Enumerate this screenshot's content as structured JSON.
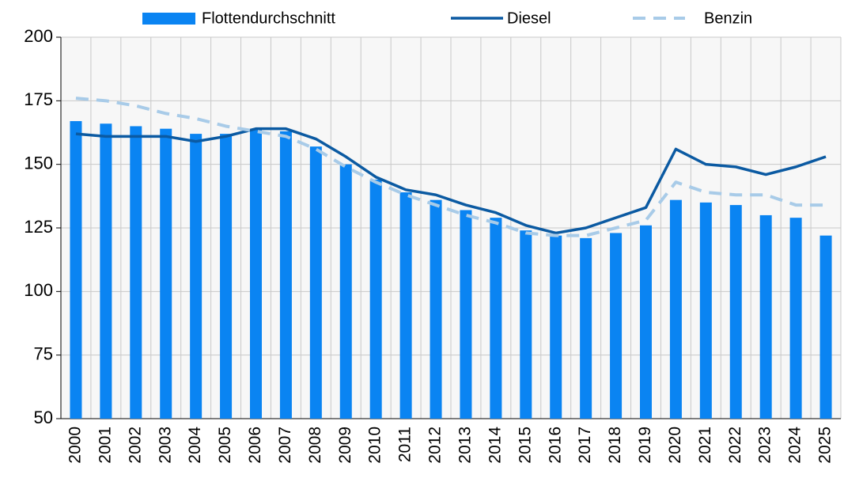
{
  "chart_data": {
    "type": "bar_line",
    "categories": [
      "2000",
      "2001",
      "2002",
      "2003",
      "2004",
      "2005",
      "2006",
      "2007",
      "2008",
      "2009",
      "2010",
      "2011",
      "2012",
      "2013",
      "2014",
      "2015",
      "2016",
      "2017",
      "2018",
      "2019",
      "2020",
      "2021",
      "2022",
      "2023",
      "2024",
      "2025"
    ],
    "series": [
      {
        "name": "Flottendurchschnitt",
        "type": "bar",
        "color": "#0a84f2",
        "values": [
          167,
          166,
          165,
          164,
          162,
          162,
          164,
          163,
          157,
          150,
          144,
          139,
          136,
          132,
          129,
          124,
          122,
          121,
          123,
          126,
          136,
          135,
          134,
          130,
          129,
          122
        ]
      },
      {
        "name": "Diesel",
        "type": "line",
        "color": "#0b5aa2",
        "dashed": false,
        "values": [
          162,
          161,
          161,
          161,
          159,
          161,
          164,
          164,
          160,
          153,
          145,
          140,
          138,
          134,
          131,
          126,
          123,
          125,
          129,
          133,
          156,
          150,
          149,
          146,
          149,
          153
        ]
      },
      {
        "name": "Benzin",
        "type": "line",
        "color": "#a8cbe8",
        "dashed": true,
        "values": [
          176,
          175,
          173,
          170,
          168,
          165,
          163,
          161,
          156,
          149,
          143,
          138,
          134,
          130,
          127,
          123,
          122,
          122,
          125,
          128,
          143,
          139,
          138,
          138,
          134,
          134
        ]
      }
    ],
    "ylim": [
      50,
      200
    ],
    "yticks": [
      50,
      75,
      100,
      125,
      150,
      175,
      200
    ],
    "grid": true,
    "legend": "top"
  }
}
